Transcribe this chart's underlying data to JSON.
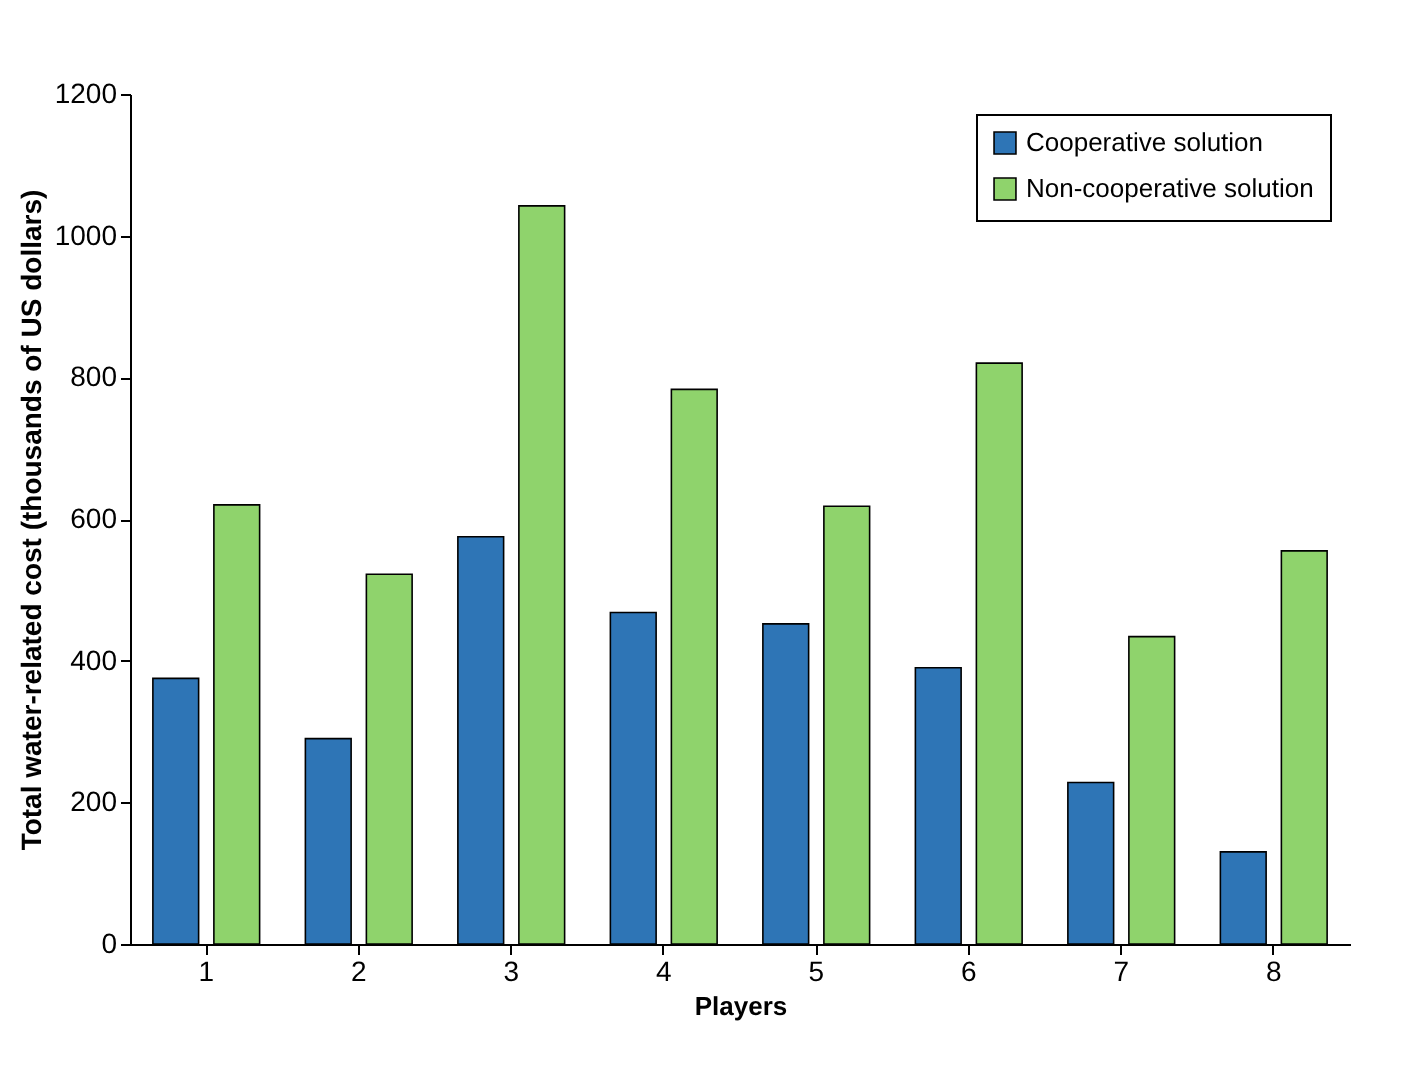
{
  "chart_data": {
    "type": "bar",
    "xlabel": "Players",
    "ylabel": "Total water-related cost (thousands of US dollars)",
    "categories": [
      "1",
      "2",
      "3",
      "4",
      "5",
      "6",
      "7",
      "8"
    ],
    "series": [
      {
        "name": "Cooperative solution",
        "color": "#2e75b6",
        "values": [
          375,
          290,
          575,
          468,
          452,
          390,
          228,
          130
        ]
      },
      {
        "name": "Non-cooperative solution",
        "color": "#8fd36c",
        "values": [
          620,
          522,
          1042,
          783,
          618,
          820,
          434,
          555
        ]
      }
    ],
    "ylim": [
      0,
      1200
    ],
    "yticks": [
      0,
      200,
      400,
      600,
      800,
      1000,
      1200
    ],
    "grid": false,
    "legend": "top right"
  }
}
